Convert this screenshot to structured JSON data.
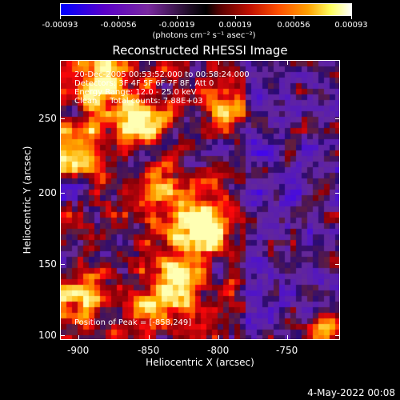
{
  "colorbar": {
    "ticks": [
      "-0.00093",
      "-0.00056",
      "-0.00019",
      "0.00019",
      "0.00056",
      "0.00093"
    ],
    "unit": "(photons cm⁻² s⁻¹ asec⁻²)"
  },
  "title": "Reconstructed RHESSI Image",
  "info": {
    "time": "20-Dec-2005 00:53:52.000 to 00:58:24.000",
    "detectors": "Detectors: 3F 4F 5F 6F 7F 8F, Att 0",
    "energy": "Energy Range: 12.0 - 25.0 keV",
    "clean": "Clean     Total counts: 7.88E+03",
    "peak": "Position of Peak = [-858,249]"
  },
  "axes": {
    "xlabel": "Heliocentric X (arcsec)",
    "ylabel": "Heliocentric Y (arcsec)",
    "xticks": [
      "-900",
      "-850",
      "-800",
      "-750"
    ],
    "yticks": [
      "250",
      "200",
      "150",
      "100"
    ]
  },
  "date_stamp": "4-May-2022 00:08"
}
